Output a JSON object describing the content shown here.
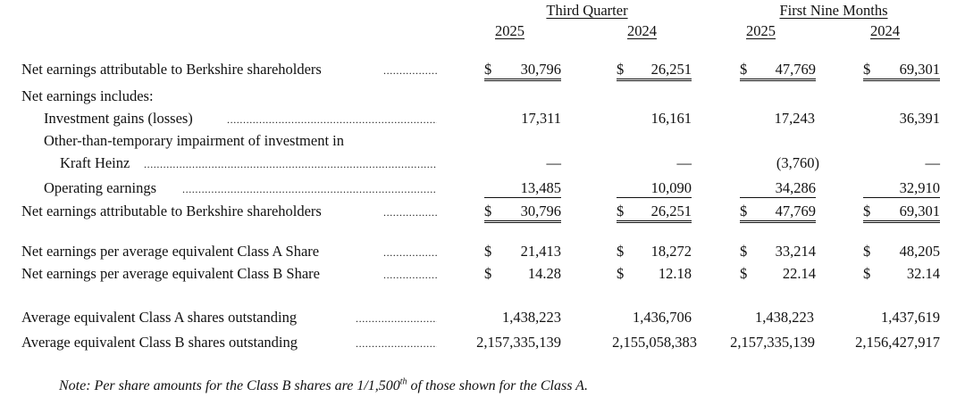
{
  "headers": {
    "third_quarter": "Third Quarter",
    "first_nine_months": "First Nine Months",
    "years": [
      "2025",
      "2024",
      "2025",
      "2024"
    ]
  },
  "currency_symbol": "$",
  "dash": "—",
  "rows": {
    "net_earnings_top": {
      "label": "Net earnings attributable to Berkshire shareholders",
      "values": [
        "30,796",
        "26,251",
        "47,769",
        "69,301"
      ]
    },
    "includes": {
      "label": "Net earnings includes:"
    },
    "investment_gains": {
      "label": "Investment gains (losses)",
      "values": [
        "17,311",
        "16,161",
        "17,243",
        "36,391"
      ]
    },
    "otti_line1": {
      "label": "Other-than-temporary impairment of investment in"
    },
    "otti_line2": {
      "label": "Kraft Heinz",
      "values": [
        "—",
        "—",
        "(3,760)",
        "—"
      ]
    },
    "operating_earnings": {
      "label": "Operating earnings",
      "values": [
        "13,485",
        "10,090",
        "34,286",
        "32,910"
      ]
    },
    "net_earnings_bottom": {
      "label": "Net earnings attributable to Berkshire shareholders",
      "values": [
        "30,796",
        "26,251",
        "47,769",
        "69,301"
      ]
    },
    "eps_a": {
      "label": "Net earnings per average equivalent Class A Share",
      "values": [
        "21,413",
        "18,272",
        "33,214",
        "48,205"
      ]
    },
    "eps_b": {
      "label": "Net earnings per average equivalent Class B Share",
      "values": [
        "14.28",
        "12.18",
        "22.14",
        "32.14"
      ]
    },
    "shares_a": {
      "label": "Average equivalent Class A shares outstanding",
      "values": [
        "1,438,223",
        "1,436,706",
        "1,438,223",
        "1,437,619"
      ]
    },
    "shares_b": {
      "label": "Average equivalent Class B shares outstanding",
      "values": [
        "2,157,335,139",
        "2,155,058,383",
        "2,157,335,139",
        "2,156,427,917"
      ]
    }
  },
  "note": {
    "prefix": "Note:  Per share amounts for the Class B shares are 1/1,500",
    "superscript": "th",
    "suffix": " of those shown for the Class A."
  }
}
